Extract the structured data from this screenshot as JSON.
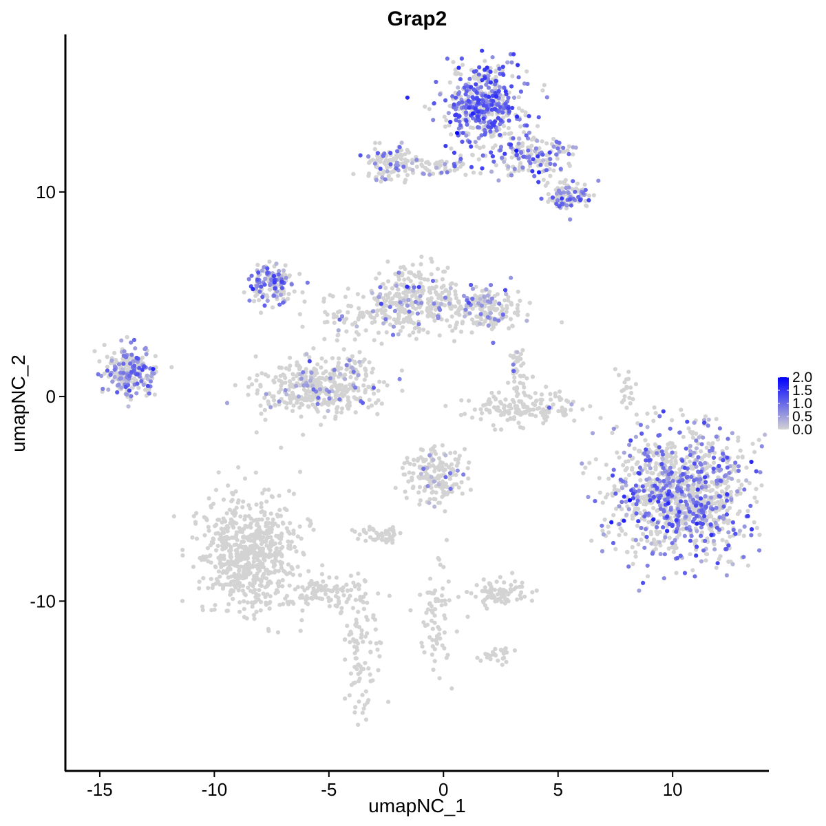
{
  "chart_data": {
    "type": "scatter",
    "title": "Grap2",
    "xlabel": "umapNC_1",
    "ylabel": "umapNC_2",
    "xlim": [
      -16.5,
      14.2
    ],
    "ylim": [
      -18.3,
      17.7
    ],
    "x_ticks": [
      -15,
      -10,
      -5,
      0,
      5,
      10
    ],
    "x_tick_labels": [
      "-15",
      "-10",
      "-5",
      "0",
      "5",
      "10"
    ],
    "y_ticks": [
      -10,
      0,
      10
    ],
    "y_tick_labels": [
      "-10",
      "0",
      "10"
    ],
    "grid": false,
    "colors": {
      "low": "#d3d3d3",
      "high": "#0000ff"
    },
    "legend": {
      "position": "right",
      "type": "colorbar",
      "min": 0.0,
      "max": 2.0,
      "ticks": [
        2.0,
        1.5,
        1.0,
        0.5,
        0.0
      ],
      "tick_labels": [
        "2.0",
        "1.5",
        "1.0",
        "0.5",
        "0.0"
      ]
    },
    "clusters": [
      {
        "cx": 1.8,
        "cy": 14.2,
        "sx": 0.9,
        "sy": 1.0,
        "n": 450,
        "expr_frac": 0.6,
        "expr_mean": 1.0
      },
      {
        "cx": 3.8,
        "cy": 11.8,
        "sx": 0.9,
        "sy": 0.5,
        "n": 150,
        "expr_frac": 0.4,
        "expr_mean": 0.8
      },
      {
        "cx": 5.3,
        "cy": 9.8,
        "sx": 0.5,
        "sy": 0.4,
        "n": 100,
        "expr_frac": 0.4,
        "expr_mean": 0.8
      },
      {
        "cx": -2.3,
        "cy": 11.5,
        "sx": 0.6,
        "sy": 0.4,
        "n": 120,
        "expr_frac": 0.3,
        "expr_mean": 0.7
      },
      {
        "cx": -0.2,
        "cy": 11.2,
        "sx": 0.7,
        "sy": 0.2,
        "n": 50,
        "expr_frac": 0.3,
        "expr_mean": 0.6
      },
      {
        "cx": -7.5,
        "cy": 5.5,
        "sx": 0.5,
        "sy": 0.5,
        "n": 150,
        "expr_frac": 0.55,
        "expr_mean": 0.7
      },
      {
        "cx": -13.7,
        "cy": 1.2,
        "sx": 0.6,
        "sy": 0.6,
        "n": 230,
        "expr_frac": 0.5,
        "expr_mean": 0.7
      },
      {
        "cx": -5.5,
        "cy": 0.4,
        "sx": 1.3,
        "sy": 0.7,
        "n": 380,
        "expr_frac": 0.08,
        "expr_mean": 0.6
      },
      {
        "cx": -1.3,
        "cy": 4.8,
        "sx": 0.9,
        "sy": 0.8,
        "n": 280,
        "expr_frac": 0.1,
        "expr_mean": 0.6
      },
      {
        "cx": 1.8,
        "cy": 4.3,
        "sx": 0.9,
        "sy": 0.5,
        "n": 200,
        "expr_frac": 0.25,
        "expr_mean": 0.6
      },
      {
        "cx": -3.5,
        "cy": 3.8,
        "sx": 1.3,
        "sy": 0.6,
        "n": 90,
        "expr_frac": 0.1,
        "expr_mean": 0.5
      },
      {
        "cx": 3.5,
        "cy": -0.5,
        "sx": 1.2,
        "sy": 0.4,
        "n": 150,
        "expr_frac": 0.02,
        "expr_mean": 0.5
      },
      {
        "cx": 10.4,
        "cy": -4.8,
        "sx": 1.5,
        "sy": 1.6,
        "n": 1100,
        "expr_frac": 0.38,
        "expr_mean": 0.8
      },
      {
        "cx": -0.4,
        "cy": -3.9,
        "sx": 0.7,
        "sy": 0.7,
        "n": 180,
        "expr_frac": 0.1,
        "expr_mean": 0.5
      },
      {
        "cx": -8.5,
        "cy": -7.8,
        "sx": 1.1,
        "sy": 1.4,
        "n": 650,
        "expr_frac": 0.0,
        "expr_mean": 0.0
      },
      {
        "cx": -5.0,
        "cy": -9.6,
        "sx": 0.9,
        "sy": 0.4,
        "n": 100,
        "expr_frac": 0.02,
        "expr_mean": 0.5
      },
      {
        "cx": -3.6,
        "cy": -12.5,
        "sx": 0.4,
        "sy": 1.6,
        "n": 90,
        "expr_frac": 0.0,
        "expr_mean": 0.0
      },
      {
        "cx": -2.6,
        "cy": -6.8,
        "sx": 0.5,
        "sy": 0.2,
        "n": 50,
        "expr_frac": 0.0,
        "expr_mean": 0.0
      },
      {
        "cx": 2.5,
        "cy": -9.6,
        "sx": 0.7,
        "sy": 0.3,
        "n": 80,
        "expr_frac": 0.0,
        "expr_mean": 0.0
      },
      {
        "cx": -0.4,
        "cy": -10.8,
        "sx": 0.4,
        "sy": 1.3,
        "n": 70,
        "expr_frac": 0.0,
        "expr_mean": 0.0
      },
      {
        "cx": 2.3,
        "cy": -12.6,
        "sx": 0.3,
        "sy": 0.2,
        "n": 25,
        "expr_frac": 0.0,
        "expr_mean": 0.0
      },
      {
        "cx": 3.3,
        "cy": 1.0,
        "sx": 0.2,
        "sy": 0.6,
        "n": 40,
        "expr_frac": 0.05,
        "expr_mean": 0.5
      },
      {
        "cx": 8.0,
        "cy": 0.3,
        "sx": 0.2,
        "sy": 0.6,
        "n": 20,
        "expr_frac": 0.05,
        "expr_mean": 0.5
      },
      {
        "cx": -3.9,
        "cy": 1.2,
        "sx": 0.3,
        "sy": 0.6,
        "n": 30,
        "expr_frac": 0.3,
        "expr_mean": 0.6
      }
    ]
  }
}
